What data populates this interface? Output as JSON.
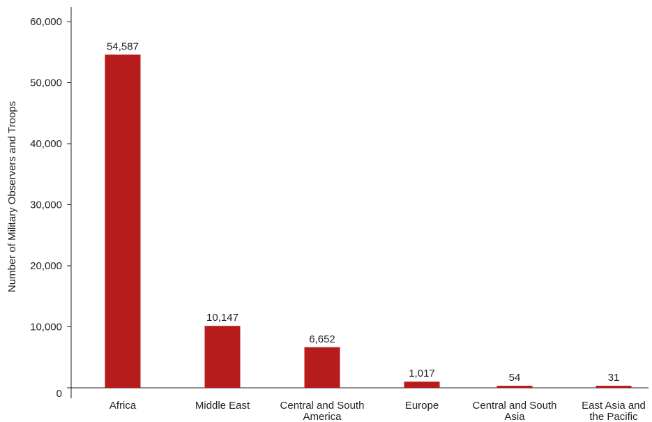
{
  "chart_data": {
    "type": "bar",
    "title": "",
    "xlabel": "",
    "ylabel": "Number of Military Observers and Troops",
    "ylim": [
      0,
      60000
    ],
    "yticks": [
      0,
      10000,
      20000,
      30000,
      40000,
      50000,
      60000
    ],
    "ytick_labels": [
      "0",
      "10,000",
      "20,000",
      "30,000",
      "40,000",
      "50,000",
      "60,000"
    ],
    "categories": [
      [
        "Africa"
      ],
      [
        "Middle East"
      ],
      [
        "Central and South",
        "America"
      ],
      [
        "Europe"
      ],
      [
        "Central and South",
        "Asia"
      ],
      [
        "East Asia and",
        "the Pacific"
      ]
    ],
    "values": [
      54587,
      10147,
      6652,
      1017,
      54,
      31
    ],
    "value_labels": [
      "54,587",
      "10,147",
      "6,652",
      "1,017",
      "54",
      "31"
    ],
    "bar_color": "#b71c1c",
    "grid": false,
    "legend": "none"
  }
}
